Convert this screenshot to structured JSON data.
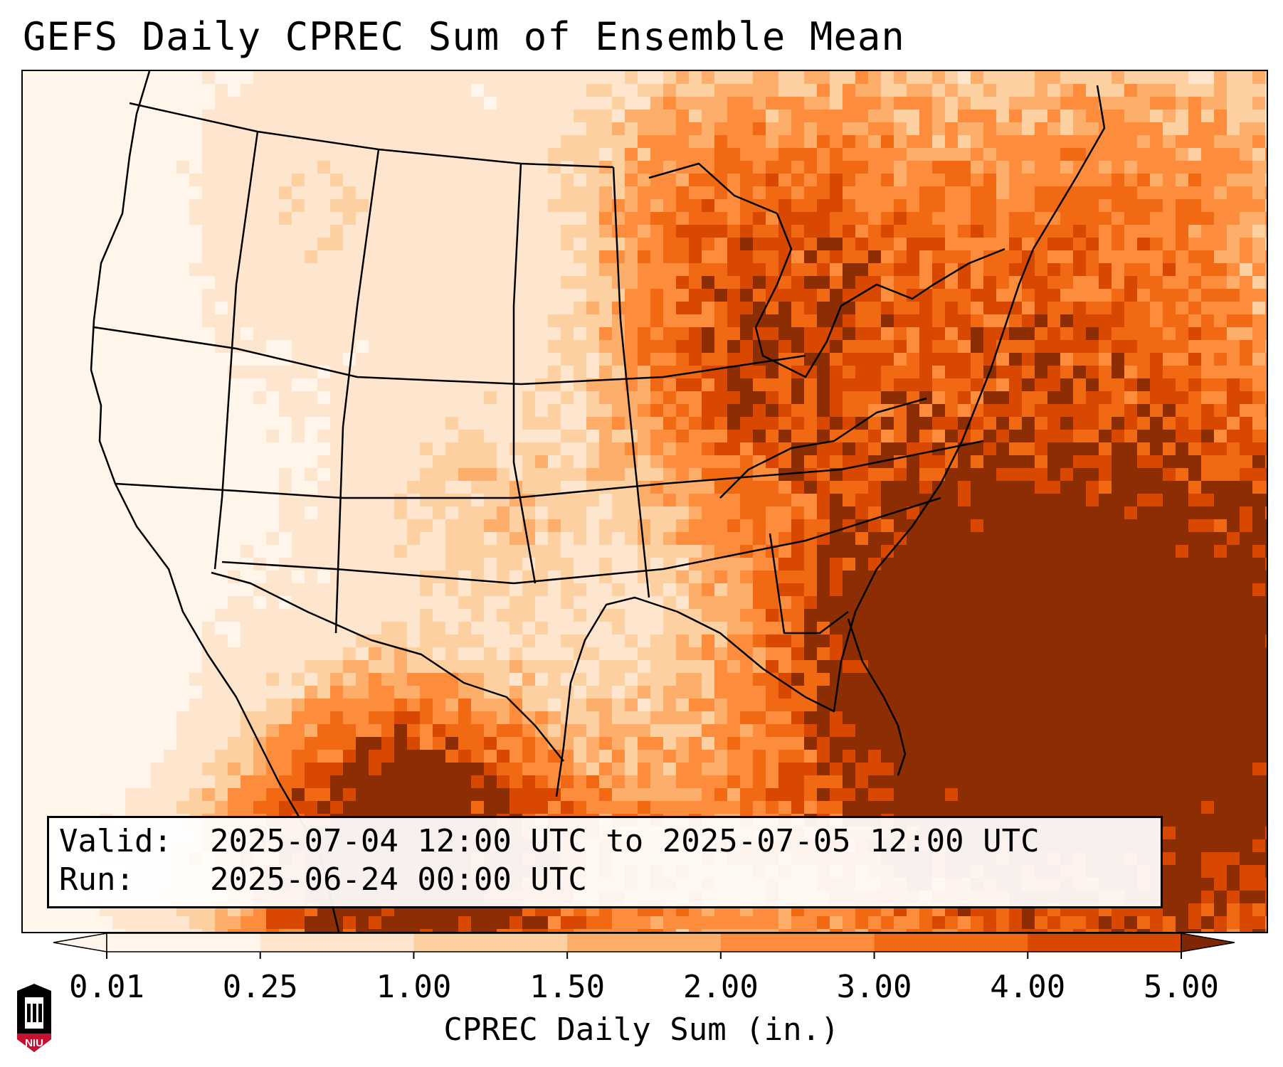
{
  "title": "GEFS Daily CPREC Sum of Ensemble Mean",
  "info": {
    "valid_label": "Valid:",
    "valid_value": "2025-07-04 12:00 UTC to 2025-07-05 12:00 UTC",
    "run_label": "Run:",
    "run_value": "2025-06-24 00:00 UTC"
  },
  "colorbar": {
    "label": "CPREC Daily Sum (in.)",
    "levels": [
      0.01,
      0.25,
      1.0,
      1.5,
      2.0,
      3.0,
      4.0,
      5.0
    ],
    "tick_labels": [
      "0.01",
      "0.25",
      "1.00",
      "1.50",
      "2.00",
      "3.00",
      "4.00",
      "5.00"
    ],
    "colors": [
      "#fff5eb",
      "#fee6ce",
      "#fdd0a2",
      "#fdae6b",
      "#fd8d3c",
      "#f16913",
      "#d94801",
      "#8c2d04"
    ],
    "under_color": "#fff5eb",
    "over_color": "#7f2704",
    "extend": "both"
  },
  "logo": {
    "text": "NIU",
    "colors": {
      "bg": "#c8102e",
      "dark": "#000000"
    }
  }
}
